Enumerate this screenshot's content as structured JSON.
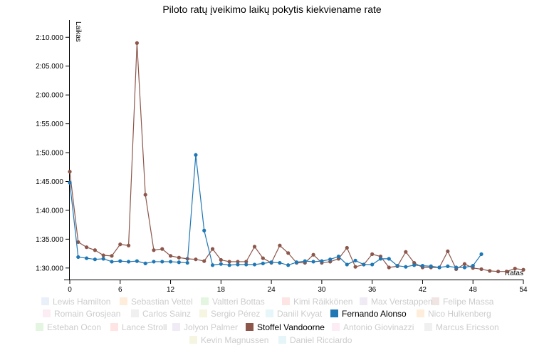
{
  "chart_data": {
    "type": "line",
    "title": "Piloto ratų įveikimo laikų pokytis kiekviename rate",
    "xlabel": "Ratas",
    "ylabel": "Laikas",
    "xlim": [
      0,
      54
    ],
    "ylim": [
      88,
      133
    ],
    "x_ticks": [
      0,
      6,
      12,
      18,
      24,
      30,
      36,
      42,
      48,
      54
    ],
    "y_ticks": [
      {
        "value": 90,
        "label": "1:30.000"
      },
      {
        "value": 95,
        "label": "1:35.000"
      },
      {
        "value": 100,
        "label": "1:40.000"
      },
      {
        "value": 105,
        "label": "1:45.000"
      },
      {
        "value": 110,
        "label": "1:50.000"
      },
      {
        "value": 115,
        "label": "1:55.000"
      },
      {
        "value": 120,
        "label": "2:00.000"
      },
      {
        "value": 125,
        "label": "2:05.000"
      },
      {
        "value": 130,
        "label": "2:10.000"
      }
    ],
    "grid": false,
    "legend_position": "bottom",
    "legend": [
      {
        "name": "Lewis Hamilton",
        "color": "#aec7e8",
        "active": false
      },
      {
        "name": "Sebastian Vettel",
        "color": "#ffbb78",
        "active": false
      },
      {
        "name": "Valtteri Bottas",
        "color": "#98df8a",
        "active": false
      },
      {
        "name": "Kimi Räikkönen",
        "color": "#ff9896",
        "active": false
      },
      {
        "name": "Max Verstappen",
        "color": "#c5b0d5",
        "active": false
      },
      {
        "name": "Felipe Massa",
        "color": "#c49c94",
        "active": false
      },
      {
        "name": "Romain Grosjean",
        "color": "#f7b6d2",
        "active": false
      },
      {
        "name": "Carlos Sainz",
        "color": "#c7c7c7",
        "active": false
      },
      {
        "name": "Sergio Pérez",
        "color": "#dbdb8d",
        "active": false
      },
      {
        "name": "Daniil Kvyat",
        "color": "#9edae5",
        "active": false
      },
      {
        "name": "Fernando Alonso",
        "color": "#1f77b4",
        "active": true
      },
      {
        "name": "Nico Hulkenberg",
        "color": "#ffbb78",
        "active": false
      },
      {
        "name": "Esteban Ocon",
        "color": "#98df8a",
        "active": false
      },
      {
        "name": "Lance Stroll",
        "color": "#ff9896",
        "active": false
      },
      {
        "name": "Jolyon Palmer",
        "color": "#c5b0d5",
        "active": false
      },
      {
        "name": "Stoffel Vandoorne",
        "color": "#8c564b",
        "active": true
      },
      {
        "name": "Antonio Giovinazzi",
        "color": "#f7b6d2",
        "active": false
      },
      {
        "name": "Marcus Ericsson",
        "color": "#c7c7c7",
        "active": false
      },
      {
        "name": "Kevin Magnussen",
        "color": "#dbdb8d",
        "active": false
      },
      {
        "name": "Daniel Ricciardo",
        "color": "#9edae5",
        "active": false
      }
    ],
    "series": [
      {
        "name": "Stoffel Vandoorne",
        "color": "#8c564b",
        "x": [
          0,
          1,
          2,
          3,
          4,
          5,
          6,
          7,
          8,
          9,
          10,
          11,
          12,
          13,
          14,
          15,
          16,
          17,
          18,
          19,
          20,
          21,
          22,
          23,
          24,
          25,
          26,
          27,
          28,
          29,
          30,
          31,
          32,
          33,
          34,
          35,
          36,
          37,
          38,
          39,
          40,
          41,
          42,
          43,
          44,
          45,
          46,
          47,
          48,
          49,
          50,
          51,
          52,
          53,
          54
        ],
        "values": [
          106.7,
          94.5,
          93.6,
          93.1,
          92.2,
          92.1,
          94.1,
          93.9,
          129.0,
          102.7,
          93.1,
          93.3,
          92.1,
          91.8,
          91.6,
          91.5,
          91.2,
          93.3,
          91.4,
          91.1,
          91.1,
          91.1,
          93.7,
          91.7,
          90.9,
          93.9,
          92.6,
          90.9,
          90.9,
          92.3,
          90.9,
          91.1,
          91.6,
          93.5,
          90.2,
          90.6,
          92.4,
          92.0,
          90.1,
          90.3,
          92.8,
          90.9,
          90.1,
          90.1,
          90.1,
          92.9,
          89.8,
          90.7,
          90.0,
          89.8,
          89.5,
          89.4,
          89.4,
          89.9,
          89.7
        ]
      },
      {
        "name": "Fernando Alonso",
        "color": "#1f77b4",
        "x": [
          0,
          1,
          2,
          3,
          4,
          5,
          6,
          7,
          8,
          9,
          10,
          11,
          12,
          13,
          14,
          15,
          16,
          17,
          18,
          19,
          20,
          21,
          22,
          23,
          24,
          25,
          26,
          27,
          28,
          29,
          30,
          31,
          32,
          33,
          34,
          35,
          36,
          37,
          38,
          39,
          40,
          41,
          42,
          43,
          44,
          45,
          46,
          47,
          48,
          49
        ],
        "values": [
          104.8,
          91.9,
          91.7,
          91.5,
          91.6,
          91.1,
          91.2,
          91.1,
          91.2,
          90.8,
          91.1,
          91.1,
          91.1,
          91.0,
          90.9,
          109.6,
          96.5,
          90.5,
          90.7,
          90.5,
          90.6,
          90.6,
          90.6,
          90.8,
          91.0,
          90.9,
          90.5,
          91.0,
          91.2,
          91.1,
          91.2,
          91.5,
          92.0,
          90.6,
          91.3,
          90.6,
          90.6,
          91.6,
          91.6,
          90.4,
          90.2,
          90.5,
          90.4,
          90.3,
          90.1,
          90.3,
          90.1,
          90.1,
          90.4,
          92.4
        ]
      }
    ]
  }
}
